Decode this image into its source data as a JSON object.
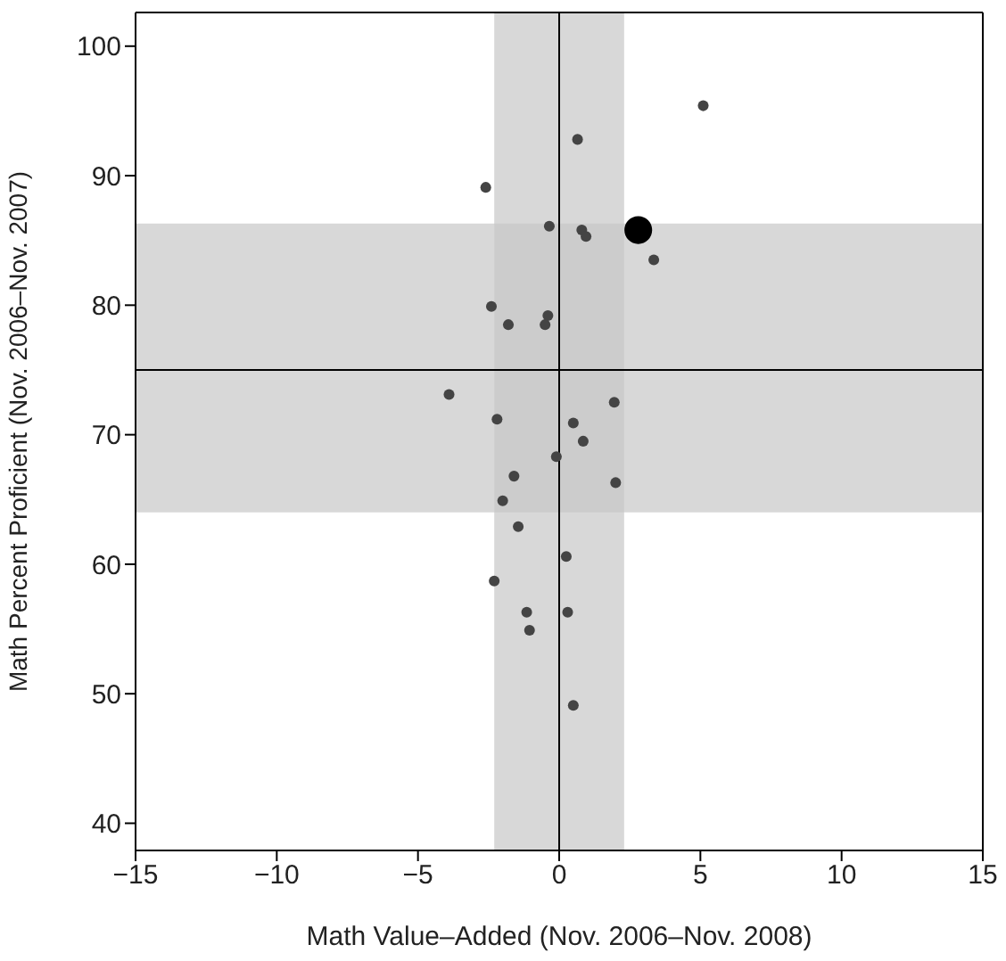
{
  "chart_data": {
    "type": "bubble",
    "xlabel": "Math Value–Added (Nov. 2006–Nov. 2008)",
    "ylabel": "Math Percent Proficient (Nov. 2006–Nov. 2007)",
    "xlim": [
      -15,
      15
    ],
    "xticks": [
      -15,
      -10,
      -5,
      0,
      5,
      10,
      15
    ],
    "ylim": [
      37.9,
      102.6
    ],
    "yticks": [
      40,
      50,
      60,
      70,
      80,
      90,
      100
    ],
    "x": [
      5.1,
      0.65,
      -2.6,
      -0.35,
      0.8,
      0.95,
      2.8,
      3.35,
      -2.4,
      -1.8,
      -0.4,
      -0.5,
      -3.9,
      1.95,
      -2.2,
      0.5,
      0.85,
      -0.1,
      -1.6,
      2.0,
      -2.0,
      -1.45,
      0.25,
      -2.3,
      -1.15,
      0.3,
      -1.05,
      0.5
    ],
    "values": [
      95.4,
      92.8,
      89.1,
      86.1,
      85.8,
      85.3,
      85.8,
      83.5,
      79.9,
      78.5,
      79.2,
      78.5,
      73.1,
      72.5,
      71.2,
      70.9,
      69.5,
      68.3,
      66.8,
      66.3,
      64.9,
      62.9,
      60.6,
      58.7,
      56.3,
      56.3,
      54.9,
      49.1
    ],
    "sizes": [
      0.15,
      0.15,
      0.15,
      0.15,
      0.15,
      0.15,
      1,
      0.15,
      0.15,
      0.15,
      0.15,
      0.15,
      0.15,
      0.15,
      0.15,
      0.15,
      0.15,
      0.15,
      0.15,
      0.15,
      0.15,
      0.15,
      0.15,
      0.15,
      0.15,
      0.15,
      0.15,
      0.15
    ],
    "colors": [
      "#444444",
      "#444444",
      "#444444",
      "#444444",
      "#444444",
      "#444444",
      "#000000",
      "#444444",
      "#444444",
      "#444444",
      "#444444",
      "#444444",
      "#444444",
      "#444444",
      "#444444",
      "#444444",
      "#444444",
      "#444444",
      "#444444",
      "#444444",
      "#444444",
      "#444444",
      "#444444",
      "#444444",
      "#444444",
      "#444444",
      "#444444",
      "#444444"
    ],
    "ref_lines": [
      {
        "axis": "x",
        "value": 0,
        "color": "#000000"
      },
      {
        "axis": "y",
        "value": 75,
        "color": "#000000"
      }
    ],
    "bands": [
      {
        "axis": "x",
        "from": -2.3,
        "to": 2.3,
        "color": "#c8c8c8"
      },
      {
        "axis": "y",
        "from": 64,
        "to": 86.3,
        "color": "#c8c8c8"
      }
    ]
  }
}
